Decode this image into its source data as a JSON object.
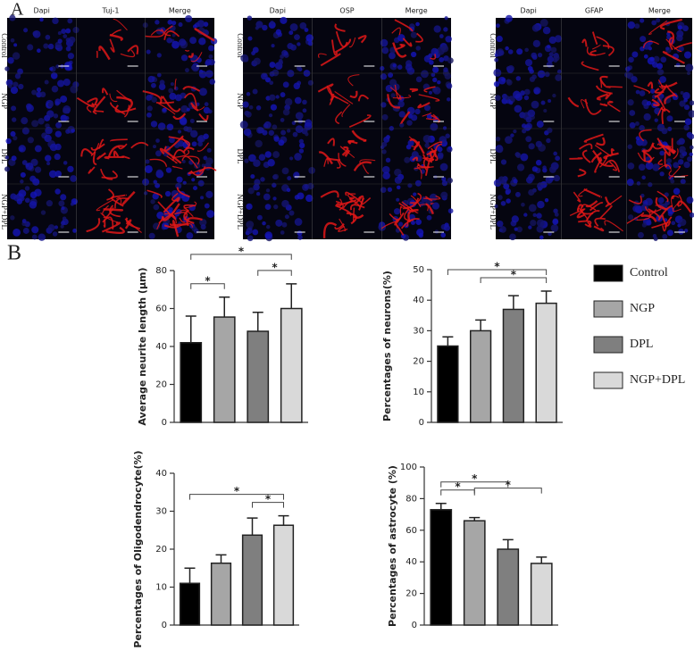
{
  "panel_labels": [
    "A",
    "B"
  ],
  "image_panels": [
    {
      "columns": [
        "Dapi",
        "Tuj-1",
        "Merge"
      ],
      "rows": [
        "Control",
        "NGP",
        "DPL",
        "NGP+DPL"
      ]
    },
    {
      "columns": [
        "Dapi",
        "OSP",
        "Merge"
      ],
      "rows": [
        "Control",
        "NGP",
        "DPL",
        "NGP+DPL"
      ]
    },
    {
      "columns": [
        "Dapi",
        "GFAP",
        "Merge"
      ],
      "rows": [
        "Control",
        "NGP",
        "DPL",
        "NGP+DPL"
      ]
    }
  ],
  "legend": [
    {
      "name": "Control",
      "color": "#000000"
    },
    {
      "name": "NGP",
      "color": "#a6a6a6"
    },
    {
      "name": "DPL",
      "color": "#7f7f7f"
    },
    {
      "name": "NGP+DPL",
      "color": "#d9d9d9"
    }
  ],
  "chart_data": [
    {
      "type": "bar",
      "y_label": "Average neurite length (μm)",
      "values": [
        42,
        55.5,
        48,
        60
      ],
      "errors": [
        14,
        10.5,
        10,
        13
      ],
      "colors": [
        "#000000",
        "#a6a6a6",
        "#7f7f7f",
        "#d9d9d9"
      ],
      "ylim": [
        0,
        80
      ],
      "yticks": [
        0,
        20,
        40,
        60,
        80
      ],
      "annotations": [
        "*",
        "*",
        "*"
      ]
    },
    {
      "type": "bar",
      "y_label": "Percentages of neurons(%)",
      "values": [
        25,
        30,
        37,
        39
      ],
      "errors": [
        3,
        3.5,
        4.5,
        4
      ],
      "colors": [
        "#000000",
        "#a6a6a6",
        "#7f7f7f",
        "#d9d9d9"
      ],
      "ylim": [
        0,
        50
      ],
      "yticks": [
        0,
        10,
        20,
        30,
        40,
        50
      ],
      "annotations": [
        "*",
        "*"
      ]
    },
    {
      "type": "bar",
      "y_label": "Percentages of Oligodendrocyte(%)",
      "values": [
        11,
        16.3,
        23.7,
        26.3
      ],
      "errors": [
        4,
        2.2,
        4.5,
        2.5
      ],
      "colors": [
        "#000000",
        "#a6a6a6",
        "#7f7f7f",
        "#d9d9d9"
      ],
      "ylim": [
        0,
        40
      ],
      "yticks": [
        0,
        10,
        20,
        30,
        40
      ],
      "annotations": [
        "*",
        "*"
      ]
    },
    {
      "type": "bar",
      "y_label": "Percentages of astrocyte (%)",
      "values": [
        73,
        66,
        48,
        39
      ],
      "errors": [
        4,
        2,
        6,
        4
      ],
      "colors": [
        "#000000",
        "#a6a6a6",
        "#7f7f7f",
        "#d9d9d9"
      ],
      "ylim": [
        0,
        100
      ],
      "yticks": [
        0,
        20,
        40,
        60,
        80,
        100
      ],
      "annotations": [
        "*",
        "*",
        "*"
      ]
    }
  ]
}
